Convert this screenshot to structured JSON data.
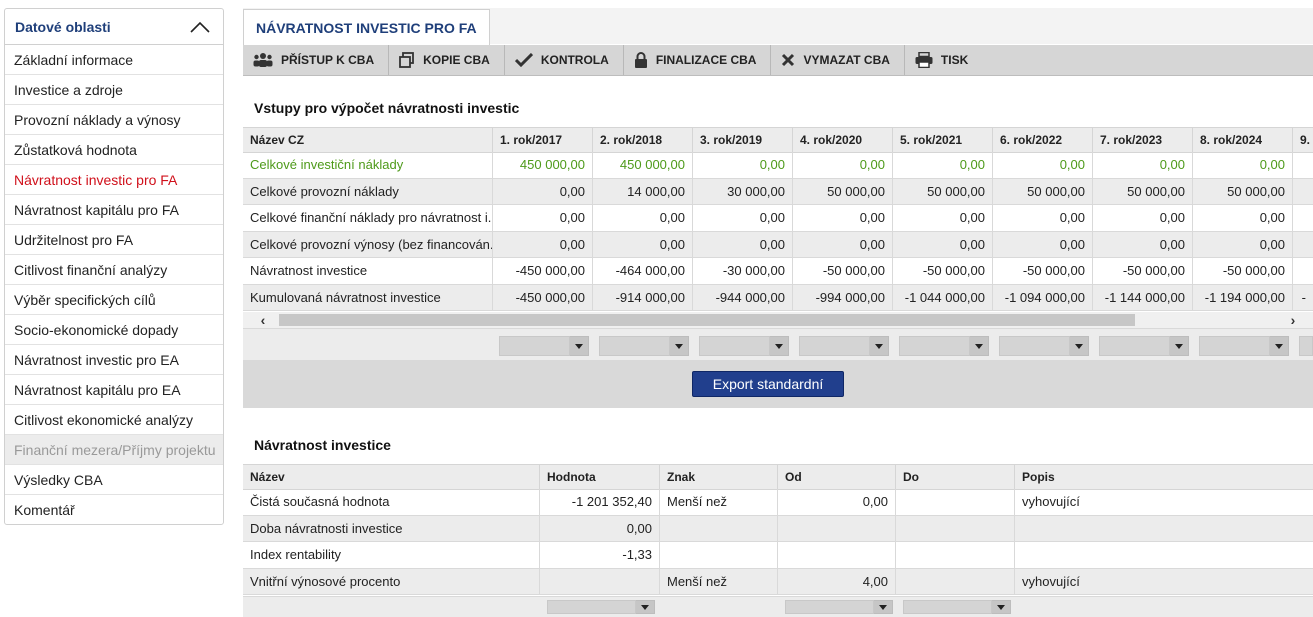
{
  "sidebar": {
    "title": "Datové oblasti",
    "items": [
      {
        "label": "Základní informace"
      },
      {
        "label": "Investice a zdroje"
      },
      {
        "label": "Provozní náklady a výnosy"
      },
      {
        "label": "Zůstatková hodnota"
      },
      {
        "label": "Návratnost investic pro FA"
      },
      {
        "label": "Návratnost kapitálu pro FA"
      },
      {
        "label": "Udržitelnost pro FA"
      },
      {
        "label": "Citlivost finanční analýzy"
      },
      {
        "label": "Výběr specifických cílů"
      },
      {
        "label": "Socio-ekonomické dopady"
      },
      {
        "label": "Návratnost investic pro EA"
      },
      {
        "label": "Návratnost kapitálu pro EA"
      },
      {
        "label": "Citlivost ekonomické analýzy"
      },
      {
        "label": "Finanční mezera/Příjmy projektu"
      },
      {
        "label": "Výsledky CBA"
      },
      {
        "label": "Komentář"
      }
    ]
  },
  "tab": {
    "label": "NÁVRATNOST INVESTIC PRO FA"
  },
  "toolbar": {
    "access": "PŘÍSTUP K CBA",
    "copy": "KOPIE CBA",
    "check": "KONTROLA",
    "finalize": "FINALIZACE CBA",
    "delete": "VYMAZAT CBA",
    "print": "TISK"
  },
  "inputs": {
    "title": "Vstupy pro výpočet návratnosti investic",
    "headers": [
      "Název CZ",
      "1. rok/2017",
      "2. rok/2018",
      "3. rok/2019",
      "4. rok/2020",
      "5. rok/2021",
      "6. rok/2022",
      "7. rok/2023",
      "8. rok/2024",
      "9."
    ],
    "rows": [
      {
        "name": "Celkové investiční náklady",
        "values": [
          "450 000,00",
          "450 000,00",
          "0,00",
          "0,00",
          "0,00",
          "0,00",
          "0,00",
          "0,00",
          ""
        ]
      },
      {
        "name": "Celkové provozní náklady",
        "values": [
          "0,00",
          "14 000,00",
          "30 000,00",
          "50 000,00",
          "50 000,00",
          "50 000,00",
          "50 000,00",
          "50 000,00",
          ""
        ]
      },
      {
        "name": "Celkové finanční náklady pro návratnost i...",
        "values": [
          "0,00",
          "0,00",
          "0,00",
          "0,00",
          "0,00",
          "0,00",
          "0,00",
          "0,00",
          ""
        ]
      },
      {
        "name": "Celkové provozní výnosy (bez financován...",
        "values": [
          "0,00",
          "0,00",
          "0,00",
          "0,00",
          "0,00",
          "0,00",
          "0,00",
          "0,00",
          ""
        ]
      },
      {
        "name": "Návratnost investice",
        "values": [
          "-450 000,00",
          "-464 000,00",
          "-30 000,00",
          "-50 000,00",
          "-50 000,00",
          "-50 000,00",
          "-50 000,00",
          "-50 000,00",
          ""
        ]
      },
      {
        "name": "Kumulovaná návratnost investice",
        "values": [
          "-450 000,00",
          "-914 000,00",
          "-944 000,00",
          "-994 000,00",
          "-1 044 000,00",
          "-1 094 000,00",
          "-1 144 000,00",
          "-1 194 000,00",
          "-"
        ]
      }
    ],
    "export_label": "Export standardní"
  },
  "returns": {
    "title": "Návratnost investice",
    "headers": [
      "Název",
      "Hodnota",
      "Znak",
      "Od",
      "Do",
      "Popis"
    ],
    "rows": [
      {
        "name": "Čistá současná hodnota",
        "value": "-1 201 352,40",
        "sign": "Menší než",
        "from": "0,00",
        "to": "",
        "desc": "vyhovující"
      },
      {
        "name": "Doba návratnosti investice",
        "value": "0,00",
        "sign": "",
        "from": "",
        "to": "",
        "desc": ""
      },
      {
        "name": "Index rentability",
        "value": "-1,33",
        "sign": "",
        "from": "",
        "to": "",
        "desc": ""
      },
      {
        "name": "Vnitřní výnosové procento",
        "value": "",
        "sign": "Menší než",
        "from": "4,00",
        "to": "",
        "desc": "vyhovující"
      }
    ]
  },
  "colors": {
    "accent": "#1f3f7a",
    "active": "#d0101b",
    "green": "#4e9a1a",
    "button": "#213f8d"
  }
}
